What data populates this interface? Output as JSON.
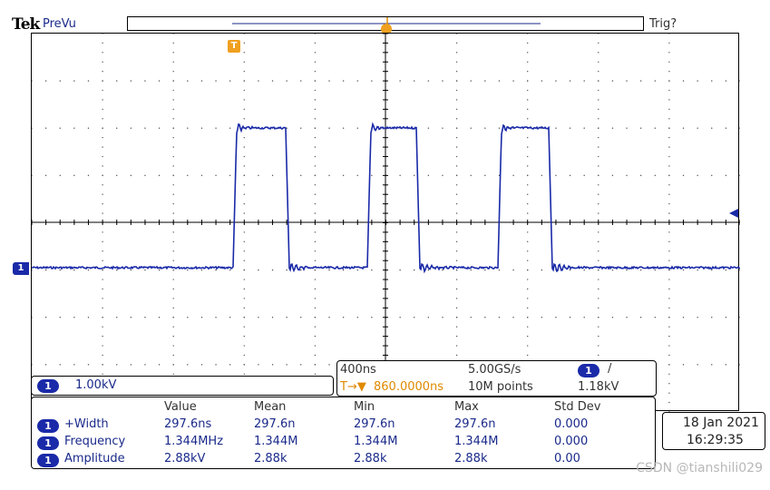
{
  "brand": {
    "logo": "Tek",
    "acq_state": "PreVu",
    "trigger_status": "Trig?"
  },
  "markers": {
    "trigger_marker": "T",
    "channel_marker": "1"
  },
  "channel": {
    "badge": "1",
    "scale": "1.00kV",
    "color": "#1a2aa8"
  },
  "timebase": {
    "scale": "400ns",
    "sample_rate": "5.00GS/s",
    "trigger_position_icon": "T→▼",
    "position": "860.0000ns",
    "record_length": "10M points",
    "trigger_channel": "1",
    "trigger_slope_icon": "/",
    "trigger_level": "1.18kV"
  },
  "measurements": {
    "headers": [
      "Value",
      "Mean",
      "Min",
      "Max",
      "Std Dev"
    ],
    "rows": [
      {
        "badge": "1",
        "name": "+Width",
        "value": "297.6ns",
        "mean": "297.6n",
        "min": "297.6n",
        "max": "297.6n",
        "std": "0.000"
      },
      {
        "badge": "1",
        "name": "Frequency",
        "value": "1.344MHz",
        "mean": "1.344M",
        "min": "1.344M",
        "max": "1.344M",
        "std": "0.000"
      },
      {
        "badge": "1",
        "name": "Amplitude",
        "value": "2.88kV",
        "mean": "2.88k",
        "min": "2.88k",
        "max": "2.88k",
        "std": "0.00"
      }
    ]
  },
  "datetime": {
    "date": "18 Jan  2021",
    "time": "16:29:35"
  },
  "watermark": "CSDN @tianshili029",
  "colors": {
    "trace": "#1a2aa8",
    "trigger": "#f0a020",
    "grid": "#000000"
  }
}
